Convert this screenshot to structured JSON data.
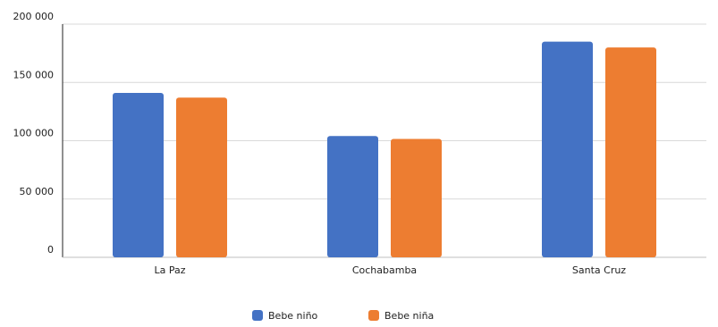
{
  "chart_data": {
    "type": "bar",
    "categories": [
      "La Paz",
      "Cochabamba",
      "Santa Cruz"
    ],
    "series": [
      {
        "name": "Bebe niño",
        "values": [
          141000,
          104000,
          185000
        ],
        "color": "#4472C4"
      },
      {
        "name": "Bebe niña",
        "values": [
          137000,
          101500,
          180000
        ],
        "color": "#ED7D31"
      }
    ],
    "yticks": [
      "0",
      "50 000",
      "100 000",
      "150 000",
      "200 000"
    ],
    "ylim": [
      0,
      200000
    ],
    "grid": true,
    "legend_position": "bottom",
    "title": "",
    "xlabel": "",
    "ylabel": ""
  }
}
